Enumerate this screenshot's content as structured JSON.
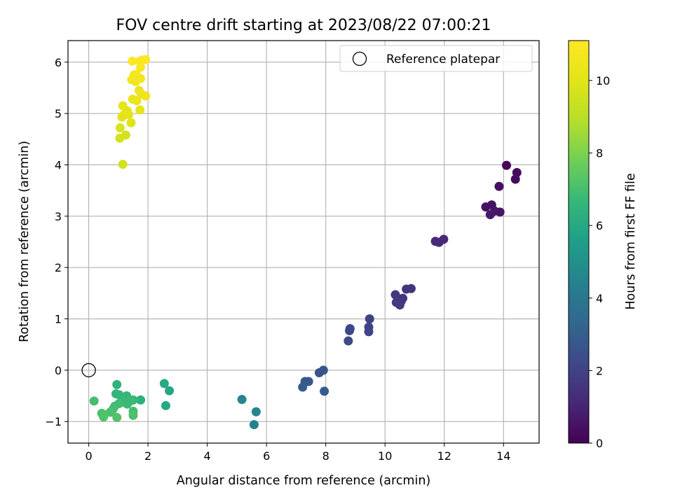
{
  "chart_data": {
    "type": "scatter",
    "title": "FOV centre drift starting at 2023/08/22 07:00:21",
    "xlabel": "Angular distance from reference (arcmin)",
    "ylabel": "Rotation from reference (arcmin)",
    "xlim": [
      -0.7,
      15.2
    ],
    "ylim": [
      -1.42,
      6.42
    ],
    "xticks": [
      0,
      2,
      4,
      6,
      8,
      10,
      12,
      14
    ],
    "yticks": [
      -1,
      0,
      1,
      2,
      3,
      4,
      5,
      6
    ],
    "grid": true,
    "legend": {
      "placement": "top-right",
      "entries": [
        "Reference platepar"
      ]
    },
    "colorbar": {
      "label": "Hours from first FF file",
      "colormap": "viridis",
      "range": [
        0,
        11.1
      ],
      "ticks": [
        0,
        2,
        4,
        6,
        8,
        10
      ]
    },
    "reference_point": {
      "x": 0,
      "y": 0,
      "marker": "open-circle"
    },
    "series": [
      {
        "points": [
          {
            "x": 14.1,
            "y": 3.99,
            "c": 0.2
          },
          {
            "x": 14.45,
            "y": 3.85,
            "c": 0.3
          },
          {
            "x": 14.4,
            "y": 3.72,
            "c": 0.3
          },
          {
            "x": 13.85,
            "y": 3.58,
            "c": 0.4
          },
          {
            "x": 13.6,
            "y": 3.22,
            "c": 0.5
          },
          {
            "x": 13.4,
            "y": 3.18,
            "c": 0.5
          },
          {
            "x": 13.7,
            "y": 3.1,
            "c": 0.6
          },
          {
            "x": 13.88,
            "y": 3.08,
            "c": 0.6
          },
          {
            "x": 13.55,
            "y": 3.03,
            "c": 0.7
          },
          {
            "x": 11.7,
            "y": 2.51,
            "c": 1.1
          },
          {
            "x": 11.82,
            "y": 2.49,
            "c": 1.1
          },
          {
            "x": 11.98,
            "y": 2.55,
            "c": 1.2
          },
          {
            "x": 10.72,
            "y": 1.58,
            "c": 1.5
          },
          {
            "x": 10.88,
            "y": 1.59,
            "c": 1.5
          },
          {
            "x": 10.35,
            "y": 1.47,
            "c": 1.6
          },
          {
            "x": 10.6,
            "y": 1.4,
            "c": 1.6
          },
          {
            "x": 10.55,
            "y": 1.35,
            "c": 1.6
          },
          {
            "x": 10.38,
            "y": 1.32,
            "c": 1.7
          },
          {
            "x": 10.5,
            "y": 1.27,
            "c": 1.7
          },
          {
            "x": 9.48,
            "y": 1.0,
            "c": 2.0
          },
          {
            "x": 9.45,
            "y": 0.84,
            "c": 2.0
          },
          {
            "x": 9.45,
            "y": 0.75,
            "c": 2.1
          },
          {
            "x": 8.82,
            "y": 0.81,
            "c": 2.2
          },
          {
            "x": 8.8,
            "y": 0.77,
            "c": 2.2
          },
          {
            "x": 8.76,
            "y": 0.57,
            "c": 2.3
          },
          {
            "x": 7.92,
            "y": 0.0,
            "c": 2.6
          },
          {
            "x": 7.78,
            "y": -0.05,
            "c": 2.6
          },
          {
            "x": 7.3,
            "y": -0.22,
            "c": 2.8
          },
          {
            "x": 7.42,
            "y": -0.22,
            "c": 2.8
          },
          {
            "x": 7.22,
            "y": -0.33,
            "c": 2.9
          },
          {
            "x": 7.95,
            "y": -0.41,
            "c": 2.9
          },
          {
            "x": 5.17,
            "y": -0.57,
            "c": 4.6
          },
          {
            "x": 5.65,
            "y": -0.81,
            "c": 4.5
          },
          {
            "x": 5.58,
            "y": -1.06,
            "c": 4.4
          },
          {
            "x": 2.55,
            "y": -0.26,
            "c": 6.0
          },
          {
            "x": 2.72,
            "y": -0.4,
            "c": 5.9
          },
          {
            "x": 2.6,
            "y": -0.69,
            "c": 5.9
          },
          {
            "x": 0.95,
            "y": -0.28,
            "c": 6.5
          },
          {
            "x": 1.75,
            "y": -0.58,
            "c": 6.3
          },
          {
            "x": 0.92,
            "y": -0.46,
            "c": 6.6
          },
          {
            "x": 1.03,
            "y": -0.48,
            "c": 6.6
          },
          {
            "x": 1.28,
            "y": -0.5,
            "c": 6.6
          },
          {
            "x": 1.5,
            "y": -0.58,
            "c": 6.7
          },
          {
            "x": 1.18,
            "y": -0.58,
            "c": 6.7
          },
          {
            "x": 1.1,
            "y": -0.63,
            "c": 6.8
          },
          {
            "x": 1.4,
            "y": -0.6,
            "c": 6.8
          },
          {
            "x": 1.3,
            "y": -0.66,
            "c": 6.8
          },
          {
            "x": 1.02,
            "y": -0.65,
            "c": 6.9
          },
          {
            "x": 0.88,
            "y": -0.7,
            "c": 6.9
          },
          {
            "x": 0.18,
            "y": -0.6,
            "c": 7.0
          },
          {
            "x": 0.82,
            "y": -0.76,
            "c": 7.0
          },
          {
            "x": 1.5,
            "y": -0.8,
            "c": 7.0
          },
          {
            "x": 0.72,
            "y": -0.82,
            "c": 7.1
          },
          {
            "x": 0.44,
            "y": -0.84,
            "c": 7.1
          },
          {
            "x": 1.5,
            "y": -0.88,
            "c": 7.1
          },
          {
            "x": 0.5,
            "y": -0.91,
            "c": 7.2
          },
          {
            "x": 0.95,
            "y": -0.92,
            "c": 7.2
          },
          {
            "x": 1.15,
            "y": 4.01,
            "c": 9.6
          },
          {
            "x": 1.05,
            "y": 4.52,
            "c": 9.7
          },
          {
            "x": 1.25,
            "y": 4.58,
            "c": 9.7
          },
          {
            "x": 1.06,
            "y": 4.72,
            "c": 9.8
          },
          {
            "x": 1.43,
            "y": 4.82,
            "c": 9.9
          },
          {
            "x": 1.12,
            "y": 4.93,
            "c": 10.0
          },
          {
            "x": 1.35,
            "y": 4.98,
            "c": 10.0
          },
          {
            "x": 1.2,
            "y": 4.98,
            "c": 10.1
          },
          {
            "x": 1.3,
            "y": 5.05,
            "c": 10.1
          },
          {
            "x": 1.15,
            "y": 5.15,
            "c": 10.2
          },
          {
            "x": 1.73,
            "y": 5.07,
            "c": 10.2
          },
          {
            "x": 1.48,
            "y": 5.28,
            "c": 10.3
          },
          {
            "x": 1.62,
            "y": 5.25,
            "c": 10.3
          },
          {
            "x": 1.77,
            "y": 5.38,
            "c": 10.4
          },
          {
            "x": 1.92,
            "y": 5.34,
            "c": 10.4
          },
          {
            "x": 1.7,
            "y": 5.45,
            "c": 10.5
          },
          {
            "x": 1.45,
            "y": 5.66,
            "c": 10.6
          },
          {
            "x": 1.58,
            "y": 5.62,
            "c": 10.6
          },
          {
            "x": 1.75,
            "y": 5.68,
            "c": 10.7
          },
          {
            "x": 1.6,
            "y": 5.76,
            "c": 10.7
          },
          {
            "x": 1.53,
            "y": 5.75,
            "c": 10.8
          },
          {
            "x": 1.75,
            "y": 5.9,
            "c": 10.9
          },
          {
            "x": 1.47,
            "y": 6.02,
            "c": 11.0
          },
          {
            "x": 1.8,
            "y": 6.04,
            "c": 11.0
          },
          {
            "x": 1.72,
            "y": 6.02,
            "c": 11.0
          },
          {
            "x": 1.92,
            "y": 6.05,
            "c": 11.1
          }
        ]
      }
    ]
  }
}
